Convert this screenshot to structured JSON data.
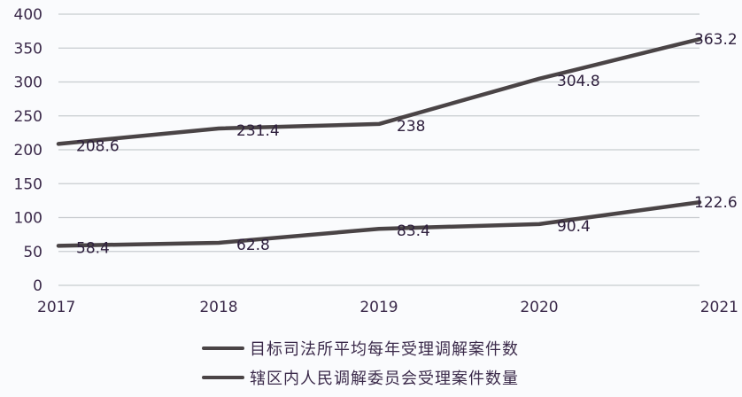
{
  "chart_data": {
    "type": "line",
    "title": "",
    "xlabel": "",
    "ylabel": "",
    "categories": [
      "2017",
      "2018",
      "2019",
      "2020",
      "2021"
    ],
    "y_ticks": [
      "0",
      "50",
      "100",
      "150",
      "200",
      "250",
      "300",
      "350",
      "400"
    ],
    "ylim": [
      0,
      400
    ],
    "grid": true,
    "legend_position": "bottom",
    "series": [
      {
        "name": "目标司法所平均每年受理调解案件数",
        "values": [
          208.6,
          231.4,
          238,
          304.8,
          363.2
        ],
        "labels": [
          "208.6",
          "231.4",
          "238",
          "304.8",
          "363.2"
        ],
        "color": "#4a4446"
      },
      {
        "name": "辖区内人民调解委员会受理案件数量",
        "values": [
          58.4,
          62.8,
          83.4,
          90.4,
          122.6
        ],
        "labels": [
          "58.4",
          "62.8",
          "83.4",
          "90.4",
          "122.6"
        ],
        "color": "#4a4446"
      }
    ]
  },
  "colors": {
    "background": "#fafbfd",
    "grid": "#c8ccd0",
    "line": "#4a4446",
    "text": "#3b2a4a"
  }
}
